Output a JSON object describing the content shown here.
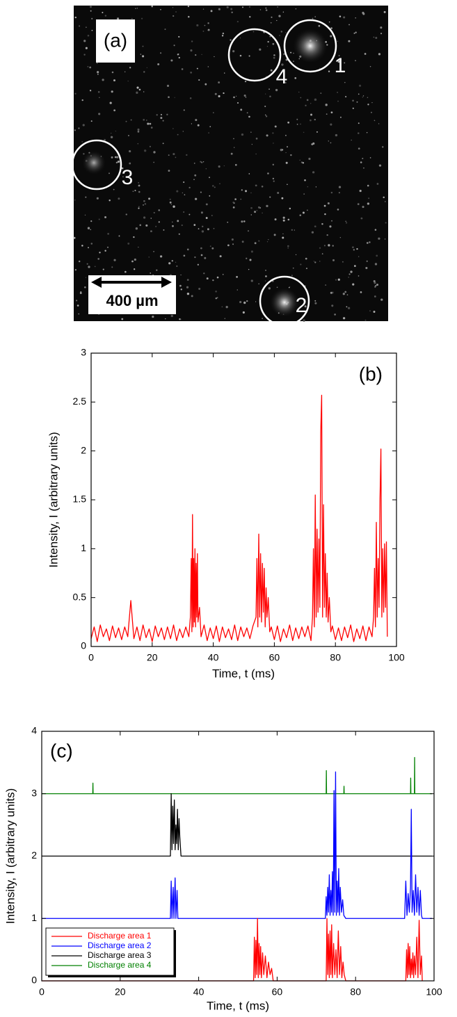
{
  "image_panel": {
    "label": "(a)",
    "scale_bar": "400 µm",
    "regions": [
      {
        "label": "1"
      },
      {
        "label": "2"
      },
      {
        "label": "3"
      },
      {
        "label": "4"
      }
    ]
  },
  "chart_data": [
    {
      "type": "line",
      "panel_label": "(b)",
      "x_label": "Time, t (ms)",
      "y_label": "Intensity, I (arbitrary units)",
      "color": "#ff0000",
      "x": [
        0,
        1,
        2,
        3,
        4,
        5,
        6,
        7,
        8,
        9,
        10,
        11,
        12,
        13,
        14,
        15,
        16,
        17,
        18,
        19,
        20,
        21,
        22,
        23,
        24,
        25,
        26,
        27,
        28,
        29,
        30,
        31,
        32,
        32.5,
        32.8,
        33,
        33.2,
        33.4,
        33.6,
        33.8,
        34,
        34.2,
        34.4,
        34.6,
        34.8,
        35,
        35.5,
        36,
        37,
        38,
        39,
        40,
        41,
        42,
        43,
        44,
        45,
        46,
        47,
        48,
        49,
        50,
        51,
        52,
        53,
        54,
        54.3,
        54.6,
        54.9,
        55.2,
        55.5,
        55.8,
        56.1,
        56.4,
        56.7,
        57,
        57.3,
        57.6,
        58,
        58.5,
        59,
        60,
        61,
        62,
        63,
        64,
        65,
        66,
        67,
        68,
        69,
        70,
        71,
        72,
        72.5,
        72.8,
        73.1,
        73.4,
        73.7,
        74,
        74.3,
        74.6,
        74.9,
        75.2,
        75.5,
        75.8,
        76.1,
        76.4,
        76.7,
        77,
        77.3,
        77.6,
        78,
        78.5,
        79,
        80,
        81,
        82,
        83,
        84,
        85,
        86,
        87,
        88,
        89,
        90,
        91,
        92,
        92.5,
        92.8,
        93.1,
        93.4,
        93.7,
        94,
        94.3,
        94.6,
        94.9,
        95.2,
        95.5,
        95.8,
        96.1,
        96.4,
        96.7,
        97
      ],
      "values": [
        0.08,
        0.2,
        0.05,
        0.22,
        0.1,
        0.18,
        0.06,
        0.21,
        0.09,
        0.19,
        0.07,
        0.2,
        0.1,
        0.47,
        0.08,
        0.2,
        0.06,
        0.22,
        0.09,
        0.18,
        0.05,
        0.21,
        0.1,
        0.19,
        0.07,
        0.2,
        0.08,
        0.22,
        0.06,
        0.18,
        0.09,
        0.2,
        0.1,
        0.3,
        0.9,
        0.15,
        1.35,
        0.2,
        0.9,
        0.25,
        1.0,
        0.2,
        0.85,
        0.3,
        0.95,
        0.25,
        0.4,
        0.1,
        0.22,
        0.06,
        0.19,
        0.08,
        0.21,
        0.05,
        0.2,
        0.09,
        0.18,
        0.07,
        0.22,
        0.06,
        0.2,
        0.1,
        0.19,
        0.08,
        0.21,
        0.3,
        0.9,
        0.2,
        1.15,
        0.3,
        0.95,
        0.25,
        0.85,
        0.35,
        0.8,
        0.2,
        0.6,
        0.3,
        0.5,
        0.15,
        0.2,
        0.07,
        0.21,
        0.05,
        0.18,
        0.09,
        0.22,
        0.06,
        0.19,
        0.08,
        0.2,
        0.1,
        0.21,
        0.06,
        0.3,
        1.0,
        0.2,
        1.55,
        0.3,
        1.2,
        0.35,
        1.1,
        0.4,
        2.2,
        2.57,
        0.3,
        1.45,
        0.4,
        0.95,
        0.3,
        0.75,
        0.25,
        0.5,
        0.15,
        0.21,
        0.07,
        0.19,
        0.06,
        0.2,
        0.09,
        0.22,
        0.05,
        0.18,
        0.08,
        0.21,
        0.06,
        0.2,
        0.1,
        0.3,
        0.8,
        0.2,
        1.27,
        0.3,
        0.9,
        0.4,
        1.5,
        2.02,
        0.3,
        1.0,
        0.35,
        1.05,
        0.4,
        1.07,
        0.1
      ],
      "xlim": [
        0,
        100
      ],
      "xticks": [
        0,
        20,
        40,
        60,
        80,
        100
      ],
      "ylim": [
        0,
        3
      ],
      "yticks": [
        0,
        0.5,
        1,
        1.5,
        2,
        2.5,
        3
      ]
    },
    {
      "type": "line",
      "panel_label": "(c)",
      "x_label": "Time, t (ms)",
      "y_label": "Intensity, I (arbitrary units)",
      "legend": "lower left",
      "series": [
        {
          "name": "Discharge area 1",
          "color": "#ff0000",
          "x": [
            0,
            54,
            54.2,
            54.4,
            54.6,
            54.8,
            55,
            55.2,
            55.4,
            55.6,
            55.8,
            56,
            56.3,
            56.6,
            57,
            57.4,
            57.8,
            58.2,
            58.6,
            59,
            72.5,
            72.7,
            72.9,
            73.1,
            73.3,
            73.5,
            73.7,
            73.9,
            74.1,
            74.4,
            74.7,
            75,
            75.3,
            75.6,
            75.9,
            76.2,
            76.5,
            76.8,
            77.1,
            77.5,
            92.8,
            93,
            93.2,
            93.4,
            93.6,
            93.8,
            94,
            94.2,
            94.4,
            94.6,
            94.8,
            95,
            95.3,
            95.6,
            95.9,
            96.2,
            96.5,
            96.8,
            97
          ],
          "values": [
            0,
            0,
            0.7,
            0.05,
            0.65,
            0.1,
            1.0,
            0.05,
            0.6,
            0.1,
            0.55,
            0.05,
            0.45,
            0.1,
            0.4,
            0.05,
            0.3,
            0.1,
            0.2,
            0,
            0,
            1.0,
            0.1,
            0.75,
            0.05,
            0.8,
            0.1,
            0.9,
            0.05,
            0.6,
            0.1,
            0.5,
            0.05,
            0.8,
            0.1,
            0.55,
            0.05,
            0.3,
            0.1,
            0,
            0,
            0.5,
            0.05,
            0.6,
            0.1,
            0.55,
            0.05,
            0.35,
            0.1,
            0.45,
            0.05,
            0.4,
            0.1,
            0.7,
            0.05,
            0.97,
            0.1,
            0.4,
            0
          ]
        },
        {
          "name": "Discharge area 2",
          "color": "#0000ff",
          "x": [
            0,
            32.8,
            33,
            33.2,
            33.5,
            33.7,
            34,
            34.2,
            34.5,
            34.7,
            72.3,
            72.5,
            72.7,
            72.9,
            73.1,
            73.3,
            73.5,
            73.7,
            73.9,
            74.1,
            74.3,
            74.5,
            74.7,
            74.9,
            75.1,
            75.3,
            75.5,
            75.7,
            75.9,
            76.1,
            76.4,
            76.7,
            77,
            77.5,
            92.5,
            92.8,
            93.1,
            93.4,
            93.7,
            94,
            94.2,
            94.4,
            94.7,
            95,
            95.3,
            95.6,
            95.9,
            96.2,
            96.5,
            96.8,
            97,
            99.5
          ],
          "values": [
            1,
            1,
            1.6,
            1,
            1.5,
            1,
            1.65,
            1,
            1.45,
            1,
            1,
            1.35,
            1.05,
            1.5,
            1.1,
            1.7,
            1.05,
            1.45,
            1.1,
            1.75,
            1.05,
            3.05,
            1.1,
            3.35,
            1.05,
            1.6,
            1.1,
            1.8,
            1.05,
            1.5,
            1.1,
            1.3,
            1.05,
            1,
            1,
            1.6,
            1.05,
            1.4,
            1.1,
            1.5,
            2.75,
            1.1,
            1.45,
            1.05,
            1.7,
            1.1,
            1.5,
            1.05,
            1.45,
            1.05,
            1,
            1
          ]
        },
        {
          "name": "Discharge area 3",
          "color": "#000000",
          "x": [
            0,
            32.8,
            33,
            33.2,
            33.4,
            33.6,
            33.8,
            34,
            34.2,
            34.4,
            34.6,
            34.8,
            35,
            35.2,
            35.5,
            99.5
          ],
          "values": [
            2,
            2,
            3.0,
            2.1,
            2.8,
            2.2,
            2.9,
            2.1,
            2.5,
            2.2,
            2.75,
            2.1,
            2.6,
            2.3,
            2,
            2
          ]
        },
        {
          "name": "Discharge area 4",
          "color": "#008000",
          "x": [
            0,
            13,
            13.05,
            13.1,
            72.5,
            72.55,
            72.6,
            77,
            77.05,
            77.1,
            94,
            94.05,
            94.1,
            95,
            95.05,
            95.1,
            99.5
          ],
          "values": [
            3,
            3,
            3.17,
            3,
            3,
            3.37,
            3,
            3,
            3.12,
            3,
            3,
            3.25,
            3,
            3,
            3.58,
            3,
            3
          ]
        }
      ],
      "xlim": [
        0,
        100
      ],
      "xticks": [
        0,
        20,
        40,
        60,
        80,
        100
      ],
      "ylim": [
        0,
        4
      ],
      "yticks": [
        0,
        1,
        2,
        3,
        4
      ]
    }
  ]
}
